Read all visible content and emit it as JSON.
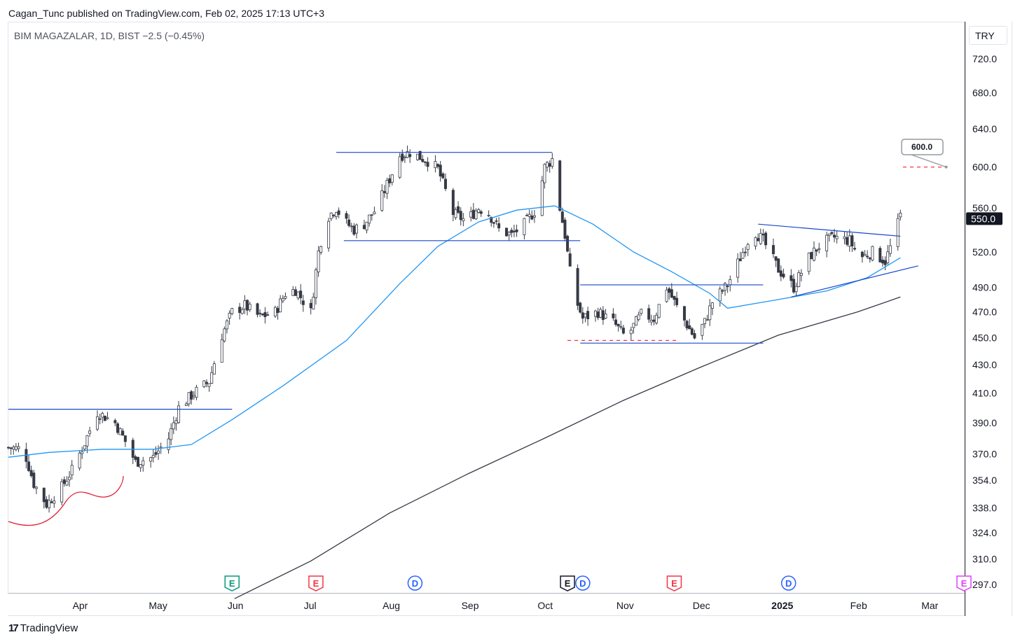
{
  "header": {
    "published_line": "Cagan_Tunc published on TradingView.com, Feb 02, 2025 17:13 UTC+3"
  },
  "legend": {
    "symbol_line": "BIM MAGAZALAR, 1D, BIST  −2.5 (−0.45%)"
  },
  "axis": {
    "currency": "TRY"
  },
  "footer": {
    "brand": "TradingView",
    "logo_icon": "tradingview-logo-icon"
  },
  "colors": {
    "candle": "#363a45",
    "candle_up_fill": "#ffffff",
    "trendline": "#1848cc",
    "ma_fast": "#2196f3",
    "ma_slow": "#363a45",
    "target_dash": "#f23645",
    "red_curve": "#e0182d",
    "earnings_green": "#089981",
    "earnings_red": "#f23645",
    "dividend_blue": "#2962ff",
    "earnings_black": "#131722",
    "earnings_purple": "#e040fb"
  },
  "chart_data": {
    "type": "candlestick",
    "title": "BIM MAGAZALAR, 1D, BIST",
    "y_scale": "log",
    "ylim": [
      290,
      770
    ],
    "y_ticks": [
      "720.0",
      "680.0",
      "640.0",
      "600.0",
      "560.0",
      "520.0",
      "490.0",
      "470.0",
      "450.0",
      "430.0",
      "410.0",
      "390.0",
      "370.0",
      "354.0",
      "338.0",
      "324.0",
      "310.0",
      "297.0"
    ],
    "y_tick_values": [
      720,
      680,
      640,
      600,
      560,
      520,
      490,
      470,
      450,
      430,
      410,
      390,
      370,
      354,
      338,
      324,
      310,
      297
    ],
    "x_ticks": [
      "Apr",
      "May",
      "Jun",
      "Jul",
      "Aug",
      "Sep",
      "Oct",
      "Nov",
      "Dec",
      "2025",
      "Feb",
      "Mar"
    ],
    "x_tick_dates": [
      "2024-04-01",
      "2024-05-01",
      "2024-06-01",
      "2024-07-01",
      "2024-08-01",
      "2024-09-01",
      "2024-10-01",
      "2024-11-01",
      "2024-12-01",
      "2025-01-01",
      "2025-02-01",
      "2025-03-01"
    ],
    "xlim": [
      "2024-03-04",
      "2025-03-15"
    ],
    "last_price": "550.0",
    "target_label": "600.0",
    "target_price": 600,
    "anchors": [
      [
        "2024-03-04",
        374
      ],
      [
        "2024-03-10",
        373
      ],
      [
        "2024-03-14",
        352
      ],
      [
        "2024-03-19",
        340
      ],
      [
        "2024-03-25",
        350
      ],
      [
        "2024-03-29",
        360
      ],
      [
        "2024-04-03",
        377
      ],
      [
        "2024-04-08",
        397
      ],
      [
        "2024-04-15",
        390
      ],
      [
        "2024-04-19",
        378
      ],
      [
        "2024-04-23",
        365
      ],
      [
        "2024-04-30",
        368
      ],
      [
        "2024-05-06",
        380
      ],
      [
        "2024-05-10",
        400
      ],
      [
        "2024-05-16",
        410
      ],
      [
        "2024-05-22",
        418
      ],
      [
        "2024-05-27",
        452
      ],
      [
        "2024-05-31",
        470
      ],
      [
        "2024-06-05",
        475
      ],
      [
        "2024-06-11",
        466
      ],
      [
        "2024-06-17",
        470
      ],
      [
        "2024-06-21",
        485
      ],
      [
        "2024-06-25",
        488
      ],
      [
        "2024-07-01",
        470
      ],
      [
        "2024-07-04",
        520
      ],
      [
        "2024-07-07",
        550
      ],
      [
        "2024-07-11",
        560
      ],
      [
        "2024-07-14",
        548
      ],
      [
        "2024-07-18",
        540
      ],
      [
        "2024-07-22",
        545
      ],
      [
        "2024-07-27",
        560
      ],
      [
        "2024-08-01",
        588
      ],
      [
        "2024-08-05",
        612
      ],
      [
        "2024-08-09",
        615
      ],
      [
        "2024-08-13",
        610
      ],
      [
        "2024-08-17",
        605
      ],
      [
        "2024-08-20",
        598
      ],
      [
        "2024-08-26",
        555
      ],
      [
        "2024-08-31",
        548
      ],
      [
        "2024-09-05",
        560
      ],
      [
        "2024-09-09",
        555
      ],
      [
        "2024-09-13",
        540
      ],
      [
        "2024-09-18",
        535
      ],
      [
        "2024-09-23",
        545
      ],
      [
        "2024-09-28",
        560
      ],
      [
        "2024-10-01",
        600
      ],
      [
        "2024-10-04",
        608
      ],
      [
        "2024-10-07",
        560
      ],
      [
        "2024-10-09",
        535
      ],
      [
        "2024-10-12",
        487
      ],
      [
        "2024-10-16",
        465
      ],
      [
        "2024-10-22",
        470
      ],
      [
        "2024-10-28",
        462
      ],
      [
        "2024-11-02",
        450
      ],
      [
        "2024-11-08",
        468
      ],
      [
        "2024-11-13",
        465
      ],
      [
        "2024-11-18",
        490
      ],
      [
        "2024-11-23",
        470
      ],
      [
        "2024-11-29",
        450
      ],
      [
        "2024-12-03",
        462
      ],
      [
        "2024-12-06",
        478
      ],
      [
        "2024-12-12",
        492
      ],
      [
        "2024-12-17",
        515
      ],
      [
        "2024-12-22",
        540
      ],
      [
        "2024-12-26",
        530
      ],
      [
        "2025-01-01",
        505
      ],
      [
        "2025-01-07",
        490
      ],
      [
        "2025-01-13",
        515
      ],
      [
        "2025-01-18",
        528
      ],
      [
        "2025-01-23",
        533
      ],
      [
        "2025-01-29",
        530
      ],
      [
        "2025-02-02",
        515
      ],
      [
        "2025-02-07",
        520
      ],
      [
        "2025-02-12",
        512
      ],
      [
        "2025-02-15",
        530
      ],
      [
        "2025-02-18",
        553
      ]
    ],
    "ma_fast": [
      [
        "2024-03-04",
        368
      ],
      [
        "2024-03-20",
        371
      ],
      [
        "2024-04-10",
        373
      ],
      [
        "2024-04-30",
        373
      ],
      [
        "2024-05-15",
        376
      ],
      [
        "2024-05-31",
        392
      ],
      [
        "2024-06-20",
        415
      ],
      [
        "2024-07-15",
        448
      ],
      [
        "2024-08-05",
        493
      ],
      [
        "2024-08-20",
        525
      ],
      [
        "2024-09-05",
        547
      ],
      [
        "2024-09-20",
        558
      ],
      [
        "2024-10-05",
        562
      ],
      [
        "2024-10-20",
        545
      ],
      [
        "2024-11-05",
        520
      ],
      [
        "2024-11-20",
        503
      ],
      [
        "2024-12-05",
        485
      ],
      [
        "2024-12-12",
        473
      ],
      [
        "2025-01-01",
        480
      ],
      [
        "2025-01-20",
        487
      ],
      [
        "2025-02-05",
        498
      ],
      [
        "2025-02-18",
        515
      ]
    ],
    "ma_slow": [
      [
        "2024-06-01",
        290
      ],
      [
        "2024-07-01",
        309
      ],
      [
        "2024-08-01",
        335
      ],
      [
        "2024-09-01",
        358
      ],
      [
        "2024-10-01",
        380
      ],
      [
        "2024-11-01",
        405
      ],
      [
        "2024-12-01",
        428
      ],
      [
        "2025-01-01",
        452
      ],
      [
        "2025-02-01",
        470
      ],
      [
        "2025-02-18",
        482
      ]
    ],
    "trendlines": [
      {
        "from": [
          "2024-03-04",
          399
        ],
        "to": [
          "2024-05-31",
          399
        ],
        "style": "solid"
      },
      {
        "from": [
          "2024-07-11",
          615
        ],
        "to": [
          "2024-10-04",
          615
        ],
        "style": "solid"
      },
      {
        "from": [
          "2024-07-14",
          530
        ],
        "to": [
          "2024-10-15",
          530
        ],
        "style": "solid"
      },
      {
        "from": [
          "2024-10-15",
          492
        ],
        "to": [
          "2024-12-26",
          492
        ],
        "style": "solid"
      },
      {
        "from": [
          "2024-10-15",
          446
        ],
        "to": [
          "2024-12-26",
          446
        ],
        "style": "solid"
      },
      {
        "from": [
          "2024-12-24",
          545
        ],
        "to": [
          "2025-02-18",
          534
        ],
        "style": "solid"
      },
      {
        "from": [
          "2025-01-06",
          482
        ],
        "to": [
          "2025-02-25",
          508
        ],
        "style": "solid"
      }
    ],
    "target_lines": [
      {
        "from": [
          "2024-10-10",
          448
        ],
        "to": [
          "2024-11-23",
          448
        ]
      },
      {
        "from": [
          "2025-02-19",
          600
        ],
        "to": [
          "2025-03-08",
          600
        ]
      }
    ],
    "events": [
      {
        "label": "E",
        "date": "2024-05-31",
        "kind": "earnings_green"
      },
      {
        "label": "E",
        "date": "2024-07-03",
        "kind": "earnings_red"
      },
      {
        "label": "D",
        "date": "2024-08-11",
        "kind": "dividend_blue"
      },
      {
        "label": "E",
        "date": "2024-10-10",
        "kind": "earnings_black"
      },
      {
        "label": "D",
        "date": "2024-10-16",
        "kind": "dividend_blue"
      },
      {
        "label": "E",
        "date": "2024-11-21",
        "kind": "earnings_red"
      },
      {
        "label": "D",
        "date": "2025-01-05",
        "kind": "dividend_blue"
      },
      {
        "label": "E",
        "date": "2025-03-15",
        "kind": "earnings_purple"
      }
    ]
  }
}
